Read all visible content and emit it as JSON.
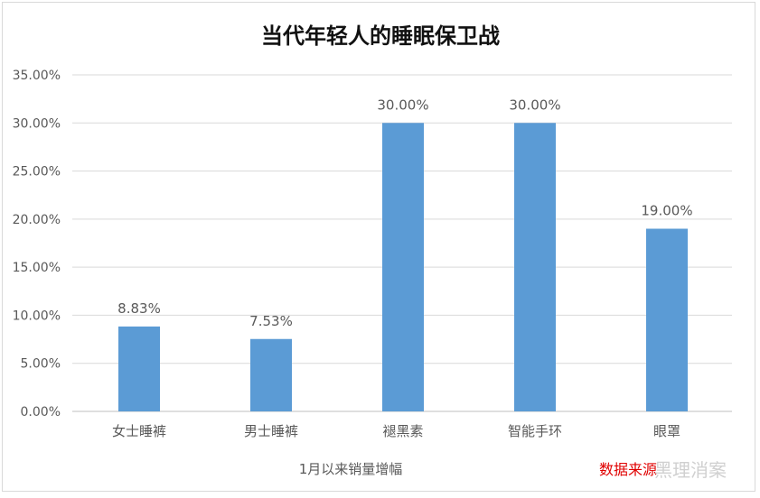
{
  "chart_data": {
    "type": "bar",
    "title": "当代年轻人的睡眠保卫战",
    "categories": [
      "女士睡裤",
      "男士睡裤",
      "褪黑素",
      "智能手环",
      "眼罩"
    ],
    "values": [
      8.83,
      7.53,
      30.0,
      30.0,
      19.0
    ],
    "data_labels": [
      "8.83%",
      "7.53%",
      "30.00%",
      "30.00%",
      "19.00%"
    ],
    "xlabel": "1月以来销量增幅",
    "ylabel": "",
    "ylim": [
      0,
      35
    ],
    "yticks": [
      0,
      5,
      10,
      15,
      20,
      25,
      30,
      35
    ],
    "ytick_labels": [
      "0.00%",
      "5.00%",
      "10.00%",
      "15.00%",
      "20.00%",
      "25.00%",
      "30.00%",
      "35.00%"
    ],
    "grid": true,
    "legend": "none",
    "bar_color": "#5b9bd5",
    "grid_color": "#d9d9d9"
  },
  "footer": {
    "source_text": "数据来源",
    "brand_text": "黑理消案",
    "source_color": "#e00000"
  }
}
